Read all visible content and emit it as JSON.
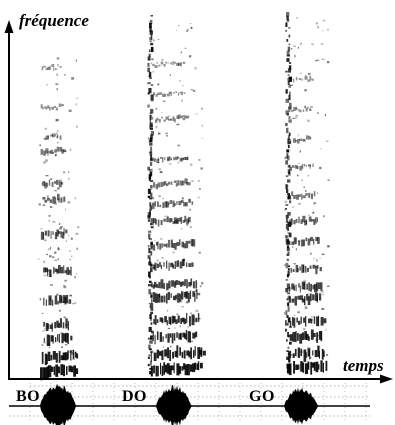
{
  "axes": {
    "y_label": "fréquence",
    "x_label": "temps"
  },
  "syllables": [
    {
      "label": "BO"
    },
    {
      "label": "DO"
    },
    {
      "label": "GO"
    }
  ],
  "colors": {
    "ink": "#000000",
    "background": "#ffffff",
    "grid": "#9a9a9a"
  }
}
